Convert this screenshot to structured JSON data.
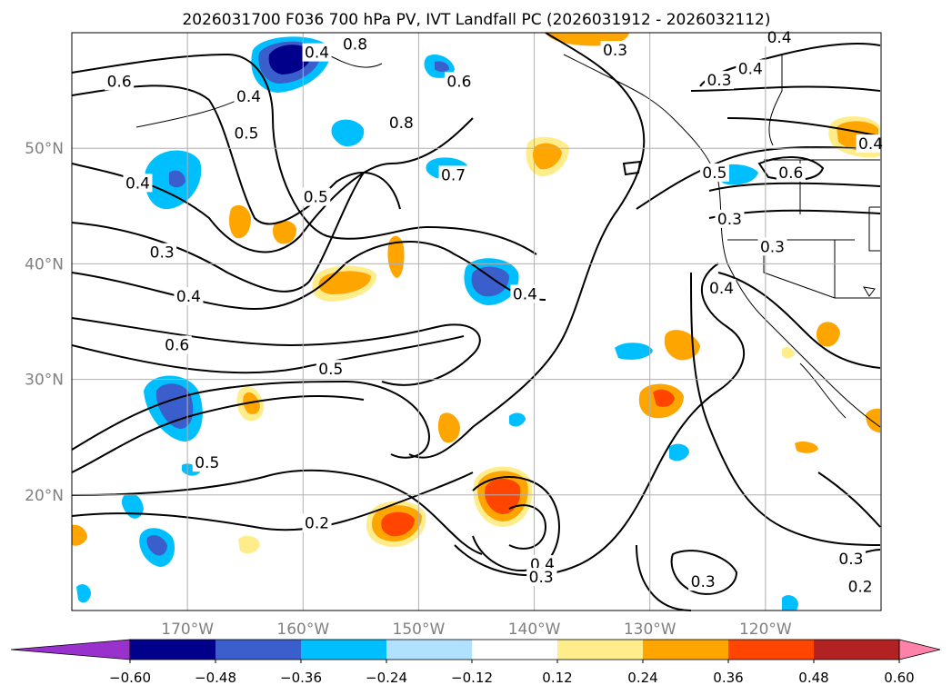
{
  "title": "2026031700 F036 700 hPa PV, IVT Landfall PC (2026031912 - 2026032112)",
  "map": {
    "lon_range": [
      -180,
      -110
    ],
    "lat_range": [
      10,
      60
    ],
    "lon_ticks": [
      {
        "value": -170,
        "label": "170°W"
      },
      {
        "value": -160,
        "label": "160°W"
      },
      {
        "value": -150,
        "label": "150°W"
      },
      {
        "value": -140,
        "label": "140°W"
      },
      {
        "value": -130,
        "label": "130°W"
      },
      {
        "value": -120,
        "label": "120°W"
      }
    ],
    "lat_ticks": [
      {
        "value": 20,
        "label": "20°N"
      },
      {
        "value": 30,
        "label": "30°N"
      },
      {
        "value": 40,
        "label": "40°N"
      },
      {
        "value": 50,
        "label": "50°N"
      }
    ],
    "gridlines": true,
    "tick_label_color": "#808080"
  },
  "contour_labels": [
    {
      "text": "0.6",
      "lon": -175.9,
      "lat": 55.8
    },
    {
      "text": "0.5",
      "lon": -164.9,
      "lat": 51.3
    },
    {
      "text": "0.4",
      "lon": -164.7,
      "lat": 54.5
    },
    {
      "text": "0.4",
      "lon": -158.8,
      "lat": 58.3
    },
    {
      "text": "0.8",
      "lon": -155.5,
      "lat": 59.0
    },
    {
      "text": "0.8",
      "lon": -151.5,
      "lat": 52.2
    },
    {
      "text": "0.6",
      "lon": -146.5,
      "lat": 55.8
    },
    {
      "text": "0.7",
      "lon": -147.0,
      "lat": 47.7
    },
    {
      "text": "0.3",
      "lon": -133.0,
      "lat": 58.5
    },
    {
      "text": "0.3",
      "lon": -124.0,
      "lat": 55.9
    },
    {
      "text": "0.4",
      "lon": -121.3,
      "lat": 56.9
    },
    {
      "text": "0.4",
      "lon": -118.8,
      "lat": 59.6
    },
    {
      "text": "0.4",
      "lon": -110.9,
      "lat": 50.4
    },
    {
      "text": "0.5",
      "lon": -124.4,
      "lat": 47.9
    },
    {
      "text": "0.6",
      "lon": -117.8,
      "lat": 47.9
    },
    {
      "text": "0.3",
      "lon": -123.1,
      "lat": 43.9
    },
    {
      "text": "0.3",
      "lon": -119.4,
      "lat": 41.5
    },
    {
      "text": "0.4",
      "lon": -123.8,
      "lat": 37.9
    },
    {
      "text": "0.4",
      "lon": -174.3,
      "lat": 47.0
    },
    {
      "text": "0.3",
      "lon": -172.2,
      "lat": 41.0
    },
    {
      "text": "0.4",
      "lon": -169.9,
      "lat": 37.2
    },
    {
      "text": "0.6",
      "lon": -170.9,
      "lat": 33.0
    },
    {
      "text": "0.5",
      "lon": -158.9,
      "lat": 45.8
    },
    {
      "text": "0.5",
      "lon": -168.3,
      "lat": 22.8
    },
    {
      "text": "0.5",
      "lon": -157.6,
      "lat": 30.9
    },
    {
      "text": "0.4",
      "lon": -140.8,
      "lat": 37.4
    },
    {
      "text": "0.2",
      "lon": -158.8,
      "lat": 17.6
    },
    {
      "text": "0.4",
      "lon": -139.3,
      "lat": 14.0
    },
    {
      "text": "0.3",
      "lon": -139.4,
      "lat": 12.9
    },
    {
      "text": "0.3",
      "lon": -125.4,
      "lat": 12.5
    },
    {
      "text": "0.3",
      "lon": -112.6,
      "lat": 14.5
    },
    {
      "text": "0.2",
      "lon": -111.8,
      "lat": 12.1
    }
  ],
  "colorbar": {
    "orientation": "horizontal",
    "extend": "both",
    "levels": [
      -0.6,
      -0.48,
      -0.36,
      -0.24,
      -0.12,
      0.12,
      0.24,
      0.36,
      0.48,
      0.6
    ],
    "tick_labels": [
      "−0.60",
      "−0.48",
      "−0.36",
      "−0.24",
      "−0.12",
      "0.12",
      "0.24",
      "0.36",
      "0.48",
      "0.60"
    ],
    "colors": [
      "#9932CC",
      "#00008B",
      "#3A5FCD",
      "#00BFFF",
      "#B0E2FF",
      "#FFFFFF",
      "#FFEC8B",
      "#FFA500",
      "#FF4500",
      "#B22222",
      "#FF82AB"
    ]
  }
}
